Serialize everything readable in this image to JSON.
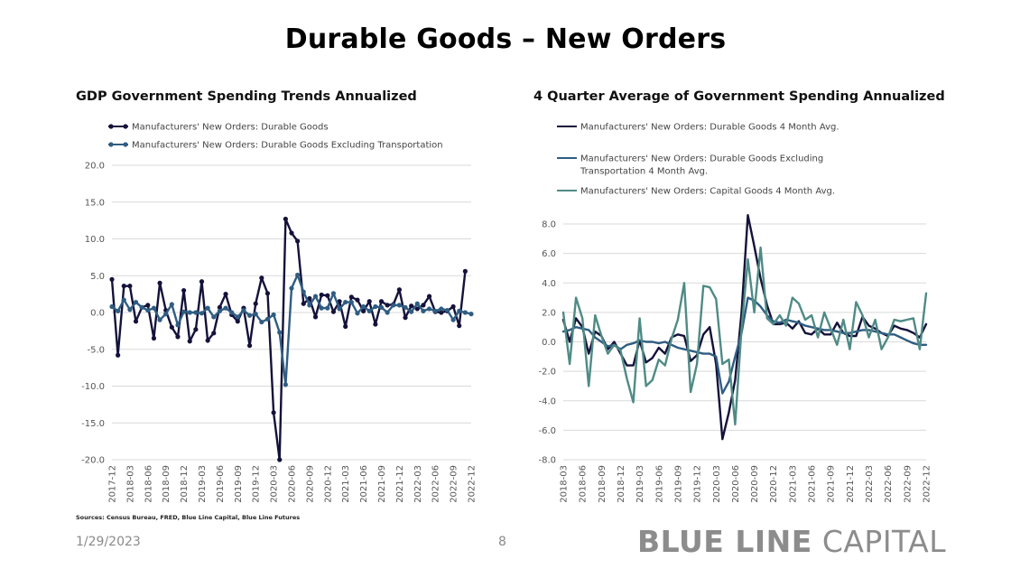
{
  "page": {
    "title": "Durable Goods – New Orders",
    "sources": "Sources: Census Bureau, FRED, Blue Line Capital, Blue Line Futures",
    "date": "1/29/2023",
    "page_number": "8",
    "brand_bold": "BLUE LINE",
    "brand_light": "CAPITAL",
    "colors": {
      "dark_navy": "#14123a",
      "steel_blue": "#2f5d82",
      "teal_green": "#4f8b85"
    }
  },
  "chart_data": [
    {
      "type": "line",
      "title": "GDP Government Spending Trends Annualized",
      "xlabel": "",
      "ylabel": "",
      "ylim": [
        -20,
        20
      ],
      "yticks": [
        20.0,
        15.0,
        10.0,
        5.0,
        0.0,
        -5.0,
        -10.0,
        -15.0,
        -20.0
      ],
      "ytick_labels": [
        "20.0",
        "15.0",
        "10.0",
        "5.0",
        "0.0",
        "-5.0",
        "-10.0",
        "-15.0",
        "-20.0"
      ],
      "grid": true,
      "markers": true,
      "legend_position": "top-left",
      "x": [
        "2017-12",
        "2018-01",
        "2018-02",
        "2018-03",
        "2018-04",
        "2018-05",
        "2018-06",
        "2018-07",
        "2018-08",
        "2018-09",
        "2018-10",
        "2018-11",
        "2018-12",
        "2019-01",
        "2019-02",
        "2019-03",
        "2019-04",
        "2019-05",
        "2019-06",
        "2019-07",
        "2019-08",
        "2019-09",
        "2019-10",
        "2019-11",
        "2019-12",
        "2020-01",
        "2020-02",
        "2020-03",
        "2020-04",
        "2020-05",
        "2020-06",
        "2020-07",
        "2020-08",
        "2020-09",
        "2020-10",
        "2020-11",
        "2020-12",
        "2021-01",
        "2021-02",
        "2021-03",
        "2021-04",
        "2021-05",
        "2021-06",
        "2021-07",
        "2021-08",
        "2021-09",
        "2021-10",
        "2021-11",
        "2021-12",
        "2022-01",
        "2022-02",
        "2022-03",
        "2022-04",
        "2022-05",
        "2022-06",
        "2022-07",
        "2022-08",
        "2022-09",
        "2022-10",
        "2022-11",
        "2022-12"
      ],
      "xtick_labels": [
        "2017-12",
        "2018-03",
        "2018-06",
        "2018-09",
        "2018-12",
        "2019-03",
        "2019-06",
        "2019-09",
        "2019-12",
        "2020-03",
        "2020-06",
        "2020-09",
        "2020-12",
        "2021-03",
        "2021-06",
        "2021-09",
        "2021-12",
        "2022-03",
        "2022-06",
        "2022-09",
        "2022-12"
      ],
      "series": [
        {
          "name": "Manufacturers' New Orders: Durable Goods",
          "color": "#14123a",
          "values": [
            4.5,
            -5.8,
            3.6,
            3.6,
            -1.2,
            0.7,
            1.0,
            -3.5,
            4.0,
            0.3,
            -2.0,
            -3.3,
            3.0,
            -3.9,
            -2.3,
            4.2,
            -3.8,
            -2.8,
            0.7,
            2.5,
            -0.3,
            -1.2,
            0.6,
            -4.5,
            1.2,
            4.7,
            2.6,
            -13.6,
            -20.0,
            12.7,
            10.8,
            9.7,
            1.2,
            1.9,
            -0.6,
            2.4,
            2.3,
            0.1,
            1.5,
            -1.9,
            2.1,
            1.7,
            0.2,
            1.5,
            -1.6,
            1.5,
            1.0,
            1.1,
            3.1,
            -0.7,
            0.9,
            0.5,
            1.0,
            2.2,
            0.1,
            0.0,
            0.2,
            0.8,
            -1.8,
            5.6,
            null
          ]
        },
        {
          "name": "Manufacturers' New Orders: Durable Goods Excluding Transportation",
          "color": "#2f5d82",
          "values": [
            0.8,
            0.2,
            1.7,
            0.4,
            1.4,
            0.7,
            0.3,
            0.6,
            -1.0,
            -0.2,
            1.1,
            -1.7,
            0.1,
            0.0,
            0.0,
            -0.1,
            0.6,
            -0.6,
            0.2,
            0.6,
            0.0,
            -0.6,
            0.3,
            -0.4,
            -0.2,
            -1.3,
            -0.9,
            -0.3,
            -2.7,
            -9.8,
            3.3,
            5.1,
            2.8,
            1.0,
            2.2,
            0.6,
            0.6,
            2.6,
            0.5,
            1.4,
            1.4,
            -0.1,
            0.8,
            0.2,
            0.8,
            0.7,
            0.0,
            1.0,
            1.0,
            0.7,
            0.1,
            1.2,
            0.2,
            0.5,
            0.2,
            0.5,
            0.3,
            -1.0,
            0.2,
            0.0,
            -0.2
          ]
        }
      ]
    },
    {
      "type": "line",
      "title": "4 Quarter Average of Government Spending Annualized",
      "xlabel": "",
      "ylabel": "",
      "ylim": [
        -8,
        8
      ],
      "yticks": [
        8.0,
        6.0,
        4.0,
        2.0,
        0.0,
        -2.0,
        -4.0,
        -6.0,
        -8.0
      ],
      "ytick_labels": [
        "8.0",
        "6.0",
        "4.0",
        "2.0",
        "0.0",
        "-2.0",
        "-4.0",
        "-6.0",
        "-8.0"
      ],
      "grid": true,
      "markers": false,
      "legend_position": "top-left",
      "x": [
        "2018-03",
        "2018-04",
        "2018-05",
        "2018-06",
        "2018-07",
        "2018-08",
        "2018-09",
        "2018-10",
        "2018-11",
        "2018-12",
        "2019-01",
        "2019-02",
        "2019-03",
        "2019-04",
        "2019-05",
        "2019-06",
        "2019-07",
        "2019-08",
        "2019-09",
        "2019-10",
        "2019-11",
        "2019-12",
        "2020-01",
        "2020-02",
        "2020-03",
        "2020-04",
        "2020-05",
        "2020-06",
        "2020-07",
        "2020-08",
        "2020-09",
        "2020-10",
        "2020-11",
        "2020-12",
        "2021-01",
        "2021-02",
        "2021-03",
        "2021-04",
        "2021-05",
        "2021-06",
        "2021-07",
        "2021-08",
        "2021-09",
        "2021-10",
        "2021-11",
        "2021-12",
        "2022-01",
        "2022-02",
        "2022-03",
        "2022-04",
        "2022-05",
        "2022-06",
        "2022-07",
        "2022-08",
        "2022-09",
        "2022-10",
        "2022-11",
        "2022-12"
      ],
      "xtick_labels": [
        "2018-03",
        "2018-06",
        "2018-09",
        "2018-12",
        "2019-03",
        "2019-06",
        "2019-09",
        "2019-12",
        "2020-03",
        "2020-06",
        "2020-09",
        "2020-12",
        "2021-03",
        "2021-06",
        "2021-09",
        "2021-12",
        "2022-03",
        "2022-06",
        "2022-09",
        "2022-12"
      ],
      "series": [
        {
          "name": "Manufacturers' New Orders: Durable Goods 4 Month Avg.",
          "color": "#14123a",
          "values": [
            1.5,
            0.0,
            1.6,
            1.0,
            -0.8,
            0.7,
            0.4,
            -0.5,
            0.0,
            -0.8,
            -1.6,
            -1.6,
            0.1,
            -1.4,
            -1.1,
            -0.4,
            -0.8,
            0.3,
            0.5,
            0.4,
            -1.3,
            -0.9,
            0.5,
            1.0,
            -1.5,
            -6.6,
            -4.8,
            -2.6,
            2.0,
            8.6,
            6.5,
            4.3,
            2.5,
            1.2,
            1.2,
            1.3,
            0.9,
            1.4,
            0.6,
            0.5,
            0.9,
            0.5,
            0.5,
            1.3,
            0.6,
            0.4,
            0.4,
            1.7,
            1.1,
            0.9,
            0.6,
            0.4,
            1.1,
            0.9,
            0.8,
            0.6,
            0.3,
            1.2
          ]
        },
        {
          "name": "Manufacturers' New Orders: Durable Goods Excluding Transportation 4 Month Avg.",
          "color": "#2f5d82",
          "values": [
            0.7,
            0.8,
            1.0,
            0.9,
            0.8,
            0.3,
            0.0,
            -0.3,
            -0.2,
            -0.5,
            -0.2,
            -0.1,
            0.1,
            0.0,
            0.0,
            -0.1,
            0.0,
            -0.2,
            -0.4,
            -0.5,
            -0.6,
            -0.7,
            -0.8,
            -0.8,
            -1.0,
            -3.5,
            -2.7,
            -1.0,
            0.6,
            3.0,
            2.8,
            2.4,
            1.8,
            1.4,
            1.3,
            1.5,
            1.4,
            1.3,
            1.1,
            1.0,
            0.9,
            0.8,
            0.8,
            0.7,
            0.6,
            0.6,
            0.7,
            0.8,
            0.8,
            0.7,
            0.6,
            0.5,
            0.5,
            0.3,
            0.1,
            -0.1,
            -0.2,
            -0.2
          ]
        },
        {
          "name": "Manufacturers' New Orders: Capital Goods 4 Month Avg.",
          "color": "#4f8b85",
          "values": [
            2.0,
            -1.5,
            3.0,
            1.6,
            -3.0,
            1.8,
            0.4,
            -0.8,
            -0.2,
            -0.6,
            -2.5,
            -4.1,
            1.6,
            -3.0,
            -2.6,
            -1.2,
            -1.6,
            0.2,
            1.5,
            4.0,
            -3.4,
            -1.5,
            3.8,
            3.7,
            2.9,
            -1.5,
            -1.2,
            -5.6,
            0.9,
            5.6,
            2.0,
            6.4,
            1.6,
            1.2,
            1.8,
            1.1,
            3.0,
            2.6,
            1.5,
            1.8,
            0.3,
            2.0,
            0.9,
            -0.2,
            1.5,
            -0.5,
            2.7,
            1.8,
            0.3,
            1.5,
            -0.5,
            0.3,
            1.5,
            1.4,
            1.5,
            1.6,
            -0.5,
            3.3
          ]
        }
      ]
    }
  ]
}
